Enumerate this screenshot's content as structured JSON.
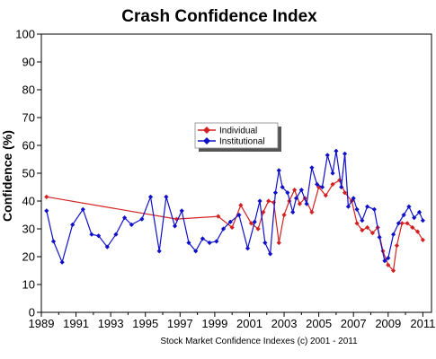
{
  "chart_data": {
    "type": "line",
    "title": "Crash Confidence Index",
    "ylabel": "Confidence (%)",
    "xlabel": "",
    "footer": "Stock Market Confidence Indexes (c) 2001 - 2011",
    "xlim": [
      1989,
      2011.5
    ],
    "ylim": [
      0,
      100
    ],
    "x_ticks": [
      "1989",
      "1991",
      "1993",
      "1995",
      "1997",
      "1999",
      "2001",
      "2003",
      "2005",
      "2007",
      "2009",
      "2011"
    ],
    "y_ticks": [
      "0",
      "10",
      "20",
      "30",
      "40",
      "50",
      "60",
      "70",
      "80",
      "90",
      "100"
    ],
    "grid": false,
    "legend_position": "center-left",
    "series": [
      {
        "name": "Individual",
        "color": "#d42020",
        "x": [
          1989.3,
          1996.8,
          1999.2,
          2000.0,
          2000.5,
          2001.1,
          2001.5,
          2001.8,
          2002.1,
          2002.4,
          2002.7,
          2003.0,
          2003.3,
          2003.6,
          2003.9,
          2004.2,
          2004.6,
          2005.0,
          2005.4,
          2005.8,
          2006.2,
          2006.5,
          2006.9,
          2007.2,
          2007.5,
          2007.8,
          2008.1,
          2008.4,
          2008.7,
          2009.0,
          2009.3,
          2009.5,
          2009.8,
          2010.1,
          2010.4,
          2010.7,
          2011.0
        ],
        "y": [
          41.5,
          33.5,
          34.5,
          30.5,
          38.5,
          32.0,
          30.0,
          36.0,
          40.0,
          39.5,
          25.0,
          35.0,
          40.0,
          44.0,
          39.0,
          41.0,
          36.0,
          45.0,
          42.0,
          46.0,
          47.5,
          43.0,
          40.0,
          32.0,
          29.5,
          30.5,
          28.5,
          30.5,
          22.0,
          17.0,
          15.0,
          24.0,
          32.0,
          32.0,
          30.5,
          29.0,
          26.0
        ]
      },
      {
        "name": "Institutional",
        "color": "#1010c8",
        "x": [
          1989.3,
          1989.7,
          1990.2,
          1990.8,
          1991.4,
          1991.9,
          1992.3,
          1992.8,
          1993.3,
          1993.8,
          1994.2,
          1994.8,
          1995.3,
          1995.8,
          1996.2,
          1996.7,
          1997.1,
          1997.5,
          1997.9,
          1998.3,
          1998.7,
          1999.1,
          1999.5,
          1999.9,
          2000.4,
          2000.9,
          2001.3,
          2001.6,
          2001.9,
          2002.2,
          2002.5,
          2002.7,
          2002.9,
          2003.2,
          2003.5,
          2003.7,
          2004.0,
          2004.3,
          2004.6,
          2004.9,
          2005.2,
          2005.5,
          2005.8,
          2006.0,
          2006.3,
          2006.5,
          2006.7,
          2007.0,
          2007.2,
          2007.5,
          2007.8,
          2008.2,
          2008.5,
          2008.8,
          2009.0,
          2009.3,
          2009.6,
          2009.9,
          2010.2,
          2010.5,
          2010.8,
          2011.0
        ],
        "y": [
          36.5,
          25.5,
          18.0,
          31.5,
          37.0,
          28.0,
          27.5,
          23.5,
          28.0,
          34.0,
          31.5,
          33.5,
          41.5,
          22.0,
          41.5,
          31.0,
          36.5,
          25.0,
          22.0,
          26.5,
          25.0,
          25.5,
          30.0,
          32.5,
          35.0,
          23.0,
          32.5,
          40.0,
          25.0,
          21.0,
          43.0,
          51.0,
          45.0,
          43.0,
          36.0,
          41.0,
          44.0,
          39.0,
          52.0,
          46.0,
          45.0,
          56.5,
          50.0,
          58.0,
          45.0,
          57.0,
          38.0,
          41.0,
          37.0,
          33.0,
          38.0,
          37.0,
          27.0,
          18.5,
          19.5,
          28.0,
          32.0,
          35.0,
          38.0,
          34.0,
          36.0,
          33.0
        ]
      }
    ]
  }
}
